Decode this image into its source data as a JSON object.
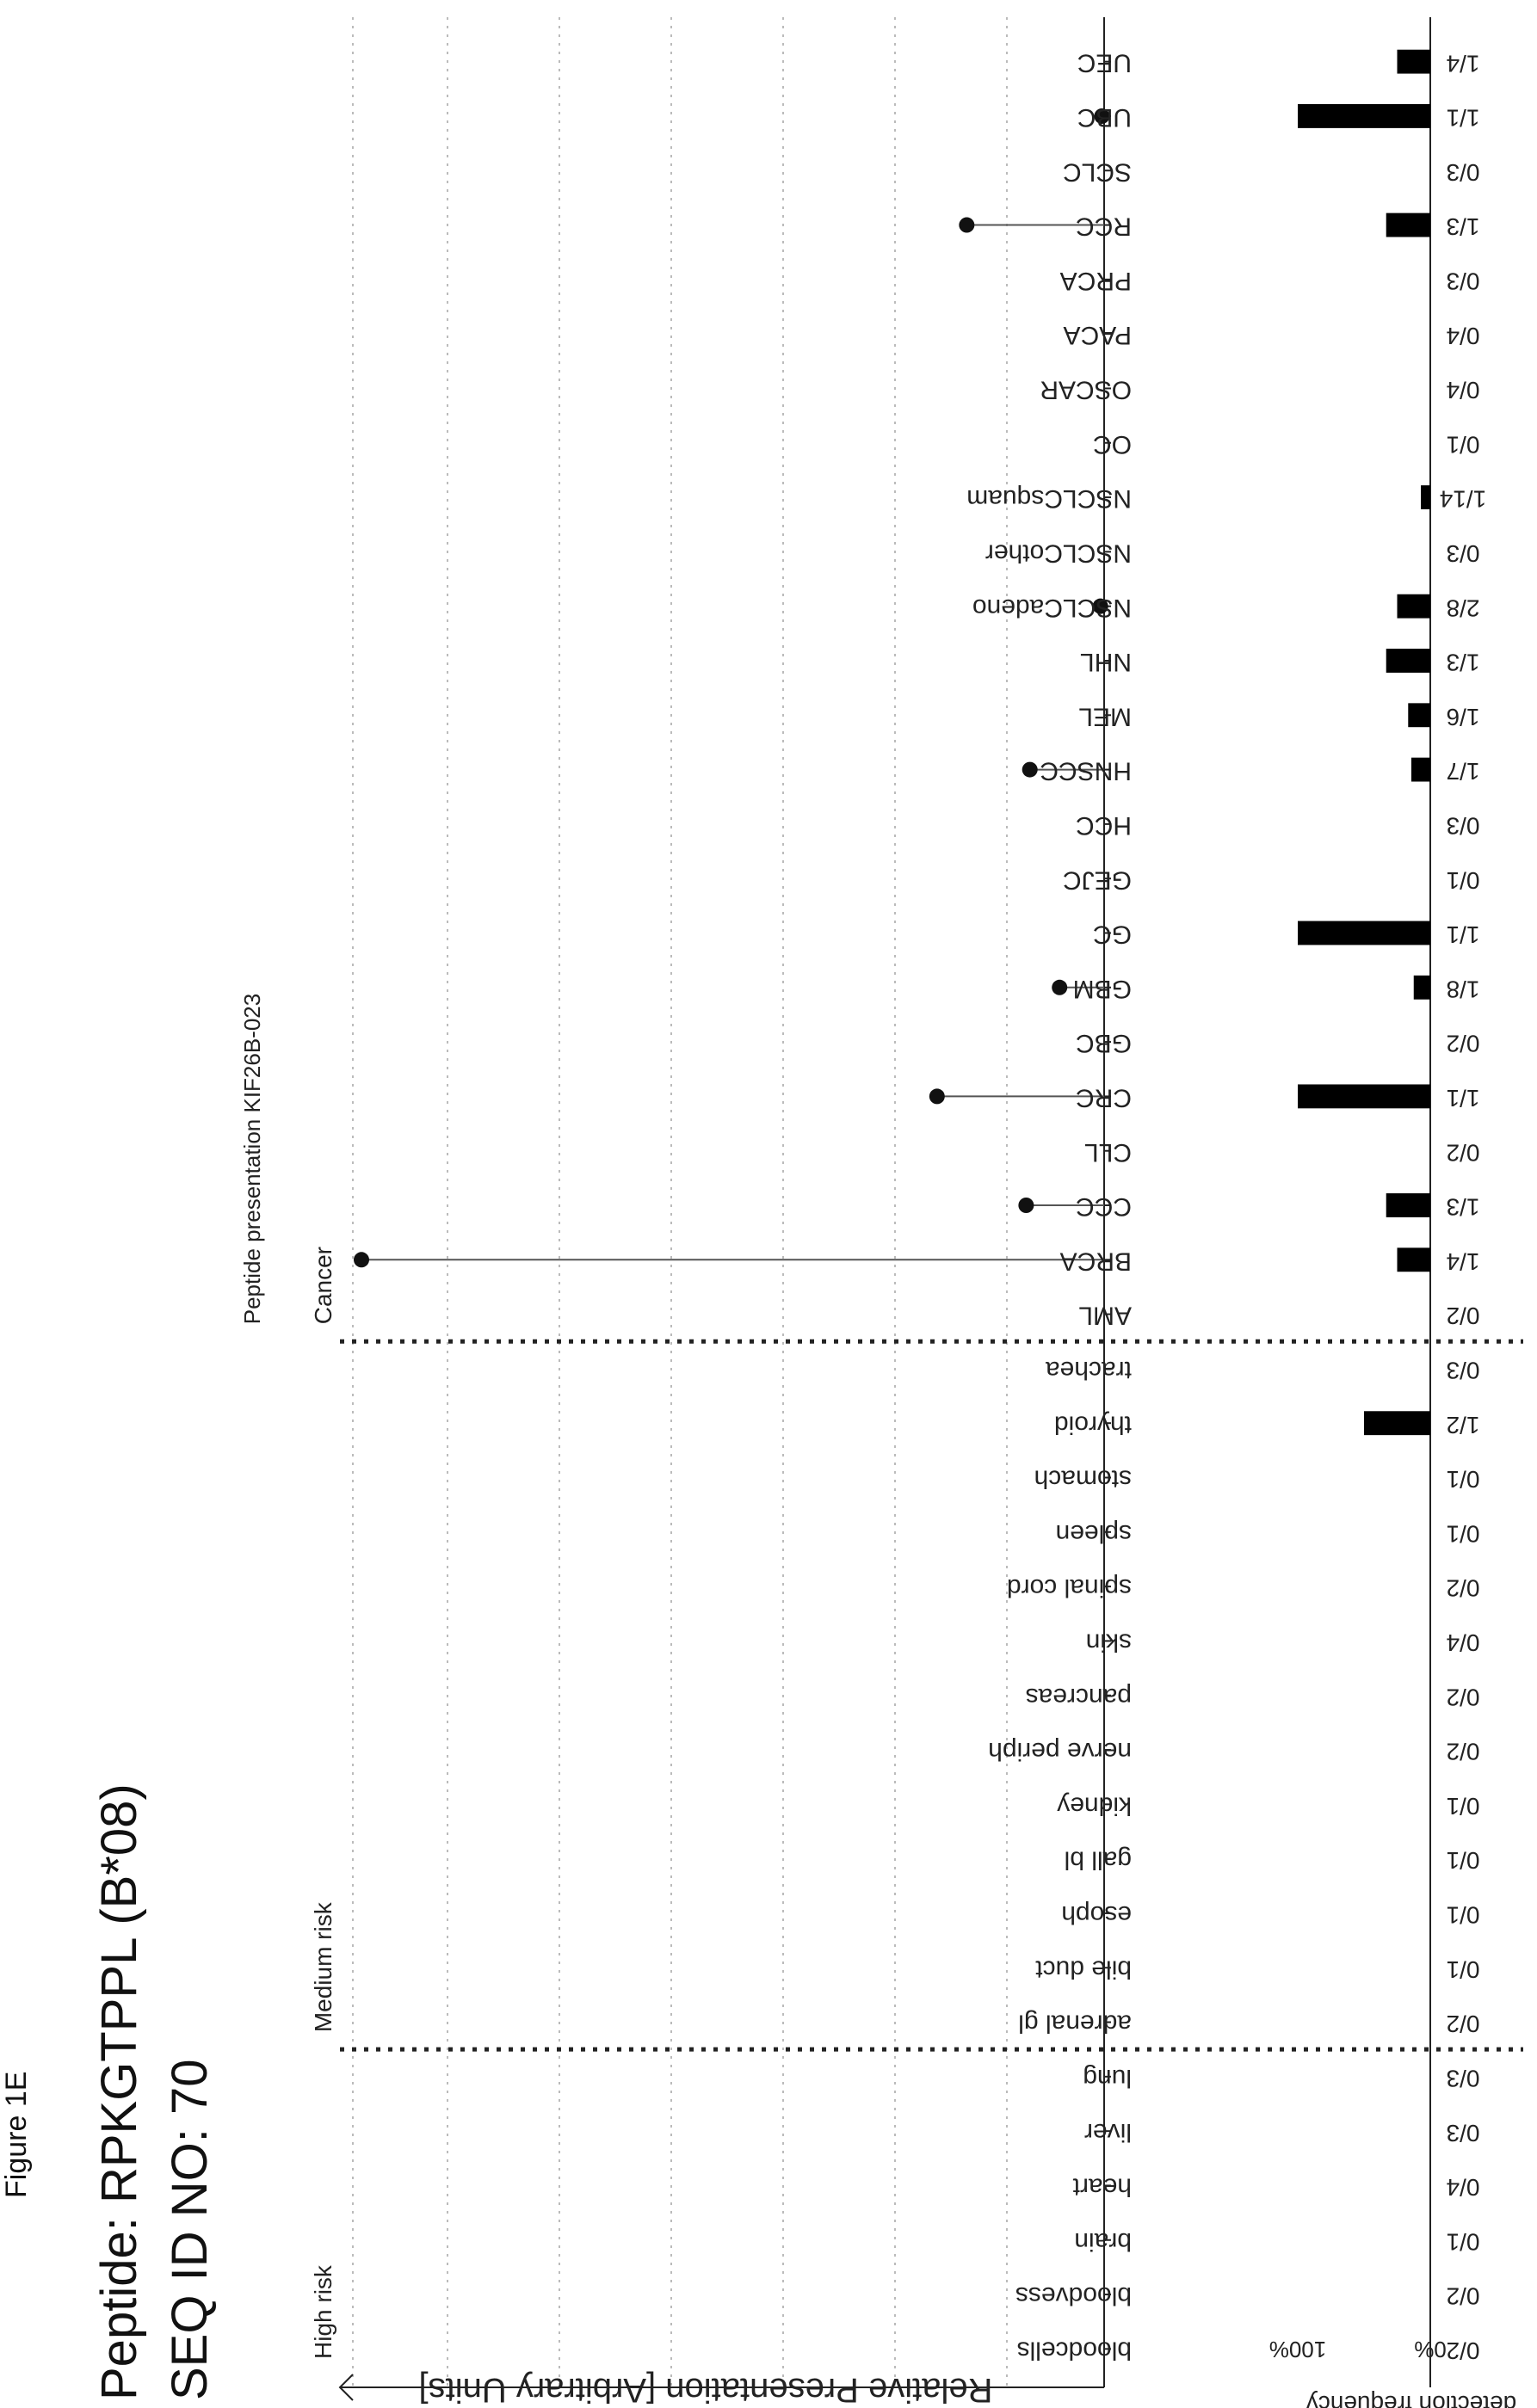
{
  "figure_label": "Figure 1E",
  "peptide_title": "Peptide: RPKGTPPL (B*08)",
  "seq_id": "SEQ ID NO: 70",
  "chart_data": {
    "type": "bar",
    "title": "Peptide presentation KIF26B-023",
    "ylabel": "Relative Presentation [Arbitrary Units]",
    "frequency_label": "detection frequency",
    "freq_ticks": [
      "100%",
      "0%"
    ],
    "groups": [
      {
        "name": "High risk",
        "categories": [
          "bloodcells",
          "bloodvess",
          "brain",
          "heart",
          "liver",
          "lung"
        ]
      },
      {
        "name": "Medium risk",
        "categories": [
          "adrenal gl",
          "bile duct",
          "esoph",
          "gall bl",
          "kidney",
          "nerve periph",
          "pancreas",
          "skin",
          "spinal cord",
          "spleen",
          "stomach",
          "thyroid",
          "trachea"
        ]
      },
      {
        "name": "Cancer",
        "categories": [
          "AML",
          "BRCA",
          "CCC",
          "CLL",
          "CRC",
          "GBC",
          "GBM",
          "GC",
          "GEJC",
          "HCC",
          "HNSCC",
          "MEL",
          "NHL",
          "NSCLCadeno",
          "NSCLCother",
          "NSCLCsquam",
          "OC",
          "OSCAR",
          "PACA",
          "PRCA",
          "RCC",
          "SCLC",
          "UBC",
          "UEC"
        ]
      }
    ],
    "categories": [
      "bloodcells",
      "bloodvess",
      "brain",
      "heart",
      "liver",
      "lung",
      "adrenal gl",
      "bile duct",
      "esoph",
      "gall bl",
      "kidney",
      "nerve periph",
      "pancreas",
      "skin",
      "spinal cord",
      "spleen",
      "stomach",
      "thyroid",
      "trachea",
      "AML",
      "BRCA",
      "CCC",
      "CLL",
      "CRC",
      "GBC",
      "GBM",
      "GC",
      "GEJC",
      "HCC",
      "HNSCC",
      "MEL",
      "NHL",
      "NSCLCadeno",
      "NSCLCother",
      "NSCLCsquam",
      "OC",
      "OSCAR",
      "PACA",
      "PRCA",
      "RCC",
      "SCLC",
      "UBC",
      "UEC"
    ],
    "relative_presentation": [
      null,
      null,
      null,
      null,
      null,
      null,
      null,
      null,
      null,
      null,
      null,
      null,
      null,
      null,
      null,
      null,
      null,
      null,
      null,
      null,
      100,
      10.5,
      null,
      22.5,
      null,
      6,
      null,
      null,
      null,
      10,
      null,
      null,
      0.5,
      null,
      null,
      null,
      null,
      null,
      null,
      18.5,
      null,
      0.3,
      null
    ],
    "detection_counts": [
      "0/2",
      "0/2",
      "0/1",
      "0/4",
      "0/3",
      "0/3",
      "0/2",
      "0/1",
      "0/1",
      "0/1",
      "0/1",
      "0/2",
      "0/2",
      "0/4",
      "0/2",
      "0/1",
      "0/1",
      "1/2",
      "0/3",
      "0/2",
      "1/4",
      "1/3",
      "0/2",
      "1/1",
      "0/2",
      "1/8",
      "1/1",
      "0/1",
      "0/3",
      "1/7",
      "1/6",
      "1/3",
      "2/8",
      "0/3",
      "1/14",
      "0/1",
      "0/4",
      "0/4",
      "0/3",
      "1/3",
      "0/3",
      "1/1",
      "1/4"
    ],
    "detection_frequency": [
      0,
      0,
      0,
      0,
      0,
      0,
      0,
      0,
      0,
      0,
      0,
      0,
      0,
      0,
      0,
      0,
      0,
      0.5,
      0,
      0,
      0.25,
      0.333,
      0,
      1.0,
      0,
      0.125,
      1.0,
      0,
      0,
      0.143,
      0.167,
      0.333,
      0.25,
      0,
      0.071,
      0,
      0,
      0,
      0,
      0.333,
      0,
      1.0,
      0.25
    ],
    "grid": true
  }
}
